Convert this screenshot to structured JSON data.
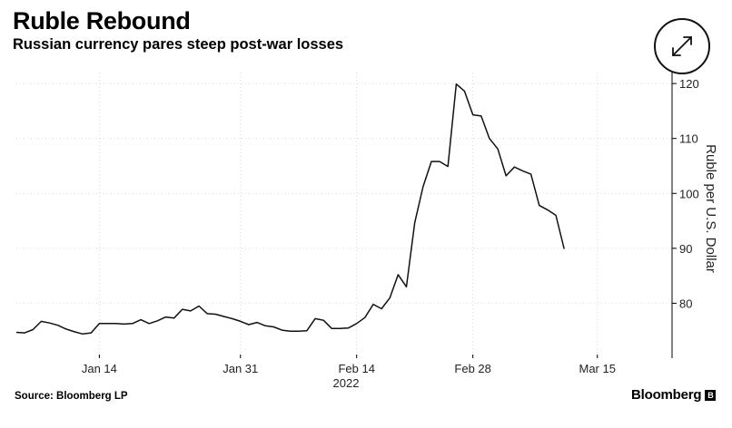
{
  "header": {
    "title": "Ruble Rebound",
    "subtitle": "Russian currency pares steep post-war losses"
  },
  "footer": {
    "source": "Source: Bloomberg LP",
    "brand": "Bloomberg"
  },
  "icons": {
    "expand": "expand-arrows-icon"
  },
  "chart_data": {
    "type": "line",
    "title": "Ruble Rebound",
    "subtitle": "Russian currency pares steep post-war losses",
    "ylabel": "Ruble per U.S. Dollar",
    "xlabel": "2022",
    "x_range": [
      "2022-01-04",
      "2022-03-24"
    ],
    "ylim": [
      70,
      122
    ],
    "y_ticks": [
      80,
      90,
      100,
      110,
      120
    ],
    "x_ticks": [
      {
        "date": "2022-01-14",
        "label": "Jan 14"
      },
      {
        "date": "2022-01-31",
        "label": "Jan 31"
      },
      {
        "date": "2022-02-14",
        "label": "Feb 14"
      },
      {
        "date": "2022-02-28",
        "label": "Feb 28"
      },
      {
        "date": "2022-03-15",
        "label": "Mar 15"
      }
    ],
    "year_label": "2022",
    "y_axis_position": "right",
    "grid": true,
    "line_color": "#111111",
    "series": [
      {
        "values": [
          [
            "2022-01-04",
            74.7
          ],
          [
            "2022-01-05",
            74.6
          ],
          [
            "2022-01-06",
            75.2
          ],
          [
            "2022-01-07",
            76.7
          ],
          [
            "2022-01-08",
            76.4
          ],
          [
            "2022-01-09",
            76.0
          ],
          [
            "2022-01-10",
            75.3
          ],
          [
            "2022-01-11",
            74.8
          ],
          [
            "2022-01-12",
            74.4
          ],
          [
            "2022-01-13",
            74.6
          ],
          [
            "2022-01-14",
            76.3
          ],
          [
            "2022-01-15",
            76.3
          ],
          [
            "2022-01-16",
            76.3
          ],
          [
            "2022-01-17",
            76.2
          ],
          [
            "2022-01-18",
            76.3
          ],
          [
            "2022-01-19",
            77.0
          ],
          [
            "2022-01-20",
            76.3
          ],
          [
            "2022-01-21",
            76.8
          ],
          [
            "2022-01-22",
            77.5
          ],
          [
            "2022-01-23",
            77.3
          ],
          [
            "2022-01-24",
            78.9
          ],
          [
            "2022-01-25",
            78.6
          ],
          [
            "2022-01-26",
            79.5
          ],
          [
            "2022-01-27",
            78.1
          ],
          [
            "2022-01-28",
            78.0
          ],
          [
            "2022-01-29",
            77.6
          ],
          [
            "2022-01-30",
            77.2
          ],
          [
            "2022-01-31",
            76.7
          ],
          [
            "2022-02-01",
            76.1
          ],
          [
            "2022-02-02",
            76.5
          ],
          [
            "2022-02-03",
            75.9
          ],
          [
            "2022-02-04",
            75.7
          ],
          [
            "2022-02-05",
            75.1
          ],
          [
            "2022-02-06",
            74.9
          ],
          [
            "2022-02-07",
            74.9
          ],
          [
            "2022-02-08",
            75.0
          ],
          [
            "2022-02-09",
            77.2
          ],
          [
            "2022-02-10",
            76.9
          ],
          [
            "2022-02-11",
            75.4
          ],
          [
            "2022-02-12",
            75.4
          ],
          [
            "2022-02-13",
            75.5
          ],
          [
            "2022-02-14",
            76.3
          ],
          [
            "2022-02-15",
            77.4
          ],
          [
            "2022-02-16",
            79.8
          ],
          [
            "2022-02-17",
            79.0
          ],
          [
            "2022-02-18",
            81.0
          ],
          [
            "2022-02-19",
            85.2
          ],
          [
            "2022-02-20",
            83.0
          ],
          [
            "2022-02-21",
            94.7
          ],
          [
            "2022-02-22",
            101.2
          ],
          [
            "2022-02-23",
            105.8
          ],
          [
            "2022-02-24",
            105.8
          ],
          [
            "2022-02-25",
            104.9
          ],
          [
            "2022-02-26",
            119.9
          ],
          [
            "2022-02-27",
            118.6
          ],
          [
            "2022-02-28",
            114.3
          ],
          [
            "2022-03-01",
            114.1
          ],
          [
            "2022-03-02",
            110.0
          ],
          [
            "2022-03-03",
            108.1
          ],
          [
            "2022-03-04",
            103.2
          ],
          [
            "2022-03-05",
            104.8
          ],
          [
            "2022-03-06",
            104.1
          ],
          [
            "2022-03-07",
            103.5
          ],
          [
            "2022-03-08",
            97.8
          ],
          [
            "2022-03-09",
            97.0
          ],
          [
            "2022-03-10",
            96.0
          ],
          [
            "2022-03-11",
            89.9
          ]
        ]
      }
    ]
  }
}
